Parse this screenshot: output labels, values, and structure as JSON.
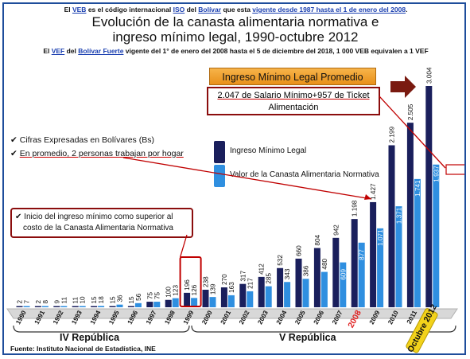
{
  "notes": {
    "veb_pre": "El ",
    "veb_code": "VEB",
    "veb_mid1": " es el código internacional ",
    "veb_iso": "ISO",
    "veb_mid2": " del ",
    "veb_bolivar": "Bolívar",
    "veb_mid3": " que esta ",
    "veb_vigente": "vigente desde 1987 hasta el 1 de enero del 2008",
    "veb_end": ".",
    "vef_pre": "El ",
    "vef_code": "VEF",
    "vef_mid1": " del ",
    "vef_bf": "Bolívar Fuerte",
    "vef_end": " vigente del 1° de enero del 2008 hasta el 5 de diciembre del 2018, 1 000 VEB equivalen a 1 VEF"
  },
  "annotations": {
    "imlp_title": "Ingreso Mínimo Legal Promedio",
    "imlp_line1": "2.047 de Salario Mínimo+957 de Ticket",
    "imlp_line2": "Alimentación",
    "bullet1": "Cifras Expresadas en Bolívares (Bs)",
    "bullet2": "En promedio, 2 personas trabajan por hogar",
    "box2_line1": "Inicio del ingreso mínimo como superior al",
    "box2_line2": "costo de la Canasta Alimentaria Normativa",
    "era_iv": "IV República",
    "era_v": "V República",
    "source": "Fuente: Instituto Nacional de Estadística, INE",
    "check_glyph": "✔"
  },
  "chart_data": {
    "type": "bar",
    "title": "Evolución de la canasta alimentaria normativa e ingreso mínimo legal, 1990-octubre 2012",
    "categories": [
      "1990",
      "1991",
      "1992",
      "1993",
      "1994",
      "1995",
      "1996",
      "1997",
      "1998",
      "1999",
      "2000",
      "2001",
      "2002",
      "2003",
      "2004",
      "2005",
      "2006",
      "2007",
      "2008",
      "2009",
      "2010",
      "2011",
      "Octubre 2012"
    ],
    "series": [
      {
        "name": "Ingreso Mínimo Legal",
        "color": "#1a1f5c",
        "values": [
          2,
          2,
          9,
          11,
          15,
          15,
          15,
          75,
          100,
          196,
          238,
          270,
          317,
          412,
          532,
          660,
          804,
          942,
          1198,
          1427,
          2199,
          2505,
          3004
        ],
        "labels": [
          "2",
          "2",
          "9",
          "11",
          "15",
          "15",
          "15",
          "75",
          "100",
          "196",
          "238",
          "270",
          "317",
          "412",
          "532",
          "660",
          "804",
          "942",
          "1.198",
          "1.427",
          "2.199",
          "2.505",
          "3.004"
        ]
      },
      {
        "name": "Valor de la Canasta Alimentaria Normativa",
        "color": "#2f8fe0",
        "values": [
          7,
          8,
          11,
          10,
          18,
          36,
          56,
          75,
          123,
          126,
          139,
          163,
          217,
          285,
          343,
          386,
          480,
          609,
          877,
          1071,
          1371,
          1741,
          1937
        ],
        "labels": [
          "7",
          "8",
          "11",
          "10",
          "18",
          "36",
          "56",
          "75",
          "123",
          "126",
          "139",
          "163",
          "217",
          "285",
          "343",
          "386",
          "480",
          "609",
          "877",
          "1.071",
          "1.371",
          "1.741",
          "1.937"
        ]
      }
    ],
    "ylim": [
      0,
      3004
    ],
    "grid": false,
    "legend": "center"
  },
  "colors": {
    "accent_red": "#c00000",
    "arrow_dark_red": "#7a1a10",
    "year_2008": "#e02020",
    "badge_yellow": "#f2d21b"
  }
}
